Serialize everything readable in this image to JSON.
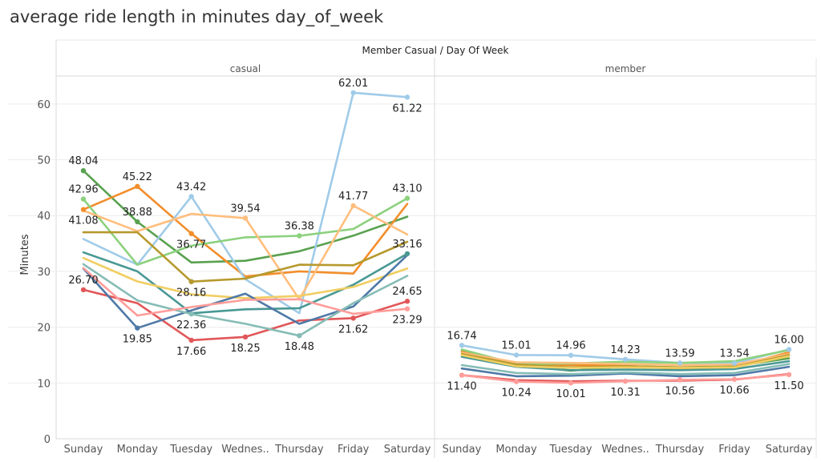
{
  "chart_data": {
    "type": "line",
    "title": "average ride length in minutes day_of_week",
    "header": "Member Casual  /  Day Of Week",
    "ylabel": "Minutes",
    "ylim": [
      0,
      65
    ],
    "yticks": [
      "0",
      "10",
      "20",
      "30",
      "40",
      "50",
      "60"
    ],
    "grid": true,
    "categories": [
      "Sunday",
      "Monday",
      "Tuesday",
      "Wednes..",
      "Thursday",
      "Friday",
      "Saturday"
    ],
    "panels": [
      {
        "name": "casual",
        "series": [
          {
            "color": "#59A14F",
            "values": [
              48.04,
              38.88,
              31.6,
              31.9,
              33.6,
              36.4,
              39.8
            ]
          },
          {
            "color": "#F28E2B",
            "values": [
              41.08,
              45.22,
              36.77,
              29.1,
              30.0,
              29.6,
              42.1
            ]
          },
          {
            "color": "#A0CBE8",
            "values": [
              35.8,
              31.2,
              43.42,
              28.6,
              22.5,
              62.01,
              61.22
            ]
          },
          {
            "color": "#8CD17D",
            "values": [
              42.96,
              31.2,
              34.6,
              36.1,
              36.38,
              37.6,
              43.1
            ]
          },
          {
            "color": "#FFBE7D",
            "values": [
              40.9,
              37.2,
              40.3,
              39.54,
              25.0,
              41.77,
              36.6
            ]
          },
          {
            "color": "#B6992D",
            "values": [
              37.0,
              37.0,
              28.16,
              28.7,
              31.2,
              31.1,
              35.3
            ]
          },
          {
            "color": "#499894",
            "values": [
              33.4,
              30.0,
              22.5,
              23.2,
              23.4,
              27.6,
              33.16
            ]
          },
          {
            "color": "#F1CE63",
            "values": [
              32.4,
              28.2,
              25.9,
              25.2,
              25.6,
              27.2,
              30.5
            ]
          },
          {
            "color": "#E15759",
            "values": [
              26.7,
              24.3,
              17.66,
              18.25,
              21.2,
              21.62,
              24.65
            ]
          },
          {
            "color": "#4E79A7",
            "values": [
              30.5,
              19.85,
              23.0,
              26.0,
              20.6,
              23.7,
              32.9
            ]
          },
          {
            "color": "#86BCB6",
            "values": [
              31.3,
              24.8,
              22.36,
              20.6,
              18.48,
              24.3,
              29.2
            ]
          },
          {
            "color": "#FF9D9A",
            "values": [
              30.6,
              22.1,
              23.6,
              24.9,
              25.0,
              22.4,
              23.29
            ]
          }
        ],
        "labels": [
          {
            "text": "48.04",
            "series": 0,
            "point": 0,
            "pos": "above"
          },
          {
            "text": "42.96",
            "series": 3,
            "point": 0,
            "pos": "above"
          },
          {
            "text": "41.08",
            "series": 1,
            "point": 0,
            "pos": "below"
          },
          {
            "text": "26.70",
            "series": 8,
            "point": 0,
            "pos": "above"
          },
          {
            "text": "45.22",
            "series": 1,
            "point": 1,
            "pos": "above"
          },
          {
            "text": "38.88",
            "series": 0,
            "point": 1,
            "pos": "above"
          },
          {
            "text": "19.85",
            "series": 9,
            "point": 1,
            "pos": "below"
          },
          {
            "text": "43.42",
            "series": 2,
            "point": 2,
            "pos": "above"
          },
          {
            "text": "36.77",
            "series": 1,
            "point": 2,
            "pos": "below"
          },
          {
            "text": "28.16",
            "series": 5,
            "point": 2,
            "pos": "below"
          },
          {
            "text": "22.36",
            "series": 10,
            "point": 2,
            "pos": "below"
          },
          {
            "text": "17.66",
            "series": 8,
            "point": 2,
            "pos": "below"
          },
          {
            "text": "39.54",
            "series": 4,
            "point": 3,
            "pos": "above"
          },
          {
            "text": "18.25",
            "series": 8,
            "point": 3,
            "pos": "below"
          },
          {
            "text": "36.38",
            "series": 3,
            "point": 4,
            "pos": "above"
          },
          {
            "text": "18.48",
            "series": 10,
            "point": 4,
            "pos": "below"
          },
          {
            "text": "62.01",
            "series": 2,
            "point": 5,
            "pos": "above"
          },
          {
            "text": "41.77",
            "series": 4,
            "point": 5,
            "pos": "above"
          },
          {
            "text": "21.62",
            "series": 8,
            "point": 5,
            "pos": "below"
          },
          {
            "text": "61.22",
            "series": 2,
            "point": 6,
            "pos": "below"
          },
          {
            "text": "43.10",
            "series": 3,
            "point": 6,
            "pos": "above"
          },
          {
            "text": "33.16",
            "series": 6,
            "point": 6,
            "pos": "above"
          },
          {
            "text": "24.65",
            "series": 8,
            "point": 6,
            "pos": "above"
          },
          {
            "text": "23.29",
            "series": 11,
            "point": 6,
            "pos": "below"
          }
        ]
      },
      {
        "name": "member",
        "series": [
          {
            "color": "#59A14F",
            "values": [
              15.8,
              13.2,
              12.2,
              13.0,
              12.8,
              13.0,
              14.4
            ]
          },
          {
            "color": "#F28E2B",
            "values": [
              15.6,
              13.4,
              13.2,
              13.1,
              12.5,
              12.9,
              15.5
            ]
          },
          {
            "color": "#A0CBE8",
            "values": [
              16.74,
              15.01,
              14.96,
              14.23,
              13.59,
              13.54,
              16.0
            ]
          },
          {
            "color": "#8CD17D",
            "values": [
              16.0,
              13.4,
              13.5,
              13.8,
              13.6,
              13.9,
              15.9
            ]
          },
          {
            "color": "#FFBE7D",
            "values": [
              15.4,
              13.7,
              13.6,
              13.4,
              13.2,
              13.3,
              15.2
            ]
          },
          {
            "color": "#B6992D",
            "values": [
              15.2,
              13.3,
              12.8,
              13.0,
              12.8,
              12.9,
              15.0
            ]
          },
          {
            "color": "#499894",
            "values": [
              14.7,
              12.9,
              12.3,
              12.4,
              12.3,
              12.5,
              13.9
            ]
          },
          {
            "color": "#F1CE63",
            "values": [
              15.0,
              13.0,
              12.7,
              12.8,
              12.7,
              12.8,
              14.8
            ]
          },
          {
            "color": "#E15759",
            "values": [
              11.4,
              10.5,
              10.3,
              10.4,
              10.4,
              10.6,
              11.6
            ]
          },
          {
            "color": "#4E79A7",
            "values": [
              12.6,
              11.2,
              11.3,
              11.7,
              11.2,
              11.4,
              12.9
            ]
          },
          {
            "color": "#86BCB6",
            "values": [
              13.2,
              11.8,
              11.6,
              11.9,
              11.6,
              11.8,
              13.4
            ]
          },
          {
            "color": "#FF9D9A",
            "values": [
              11.4,
              10.24,
              10.01,
              10.31,
              10.56,
              10.66,
              11.5
            ]
          }
        ],
        "labels": [
          {
            "text": "16.74",
            "series": 2,
            "point": 0,
            "pos": "above"
          },
          {
            "text": "11.40",
            "series": 11,
            "point": 0,
            "pos": "below"
          },
          {
            "text": "15.01",
            "series": 2,
            "point": 1,
            "pos": "above"
          },
          {
            "text": "10.24",
            "series": 11,
            "point": 1,
            "pos": "below"
          },
          {
            "text": "14.96",
            "series": 2,
            "point": 2,
            "pos": "above"
          },
          {
            "text": "10.01",
            "series": 11,
            "point": 2,
            "pos": "below"
          },
          {
            "text": "14.23",
            "series": 2,
            "point": 3,
            "pos": "above"
          },
          {
            "text": "10.31",
            "series": 11,
            "point": 3,
            "pos": "below"
          },
          {
            "text": "13.59",
            "series": 2,
            "point": 4,
            "pos": "above"
          },
          {
            "text": "10.56",
            "series": 11,
            "point": 4,
            "pos": "below"
          },
          {
            "text": "13.54",
            "series": 2,
            "point": 5,
            "pos": "above"
          },
          {
            "text": "10.66",
            "series": 11,
            "point": 5,
            "pos": "below"
          },
          {
            "text": "16.00",
            "series": 2,
            "point": 6,
            "pos": "above"
          },
          {
            "text": "11.50",
            "series": 11,
            "point": 6,
            "pos": "below"
          }
        ]
      }
    ]
  }
}
